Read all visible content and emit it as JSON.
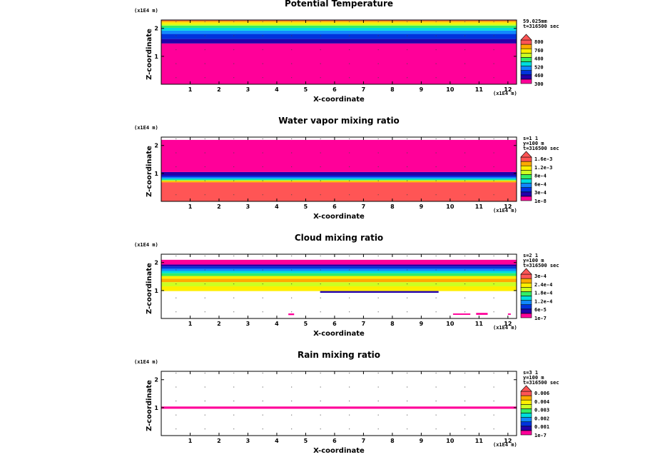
{
  "figure": {
    "xlabel": "X-coordinate",
    "zlabel": "Z-coordinate",
    "x_unit": "(x1E4 m)",
    "z_unit": "(x1E4 m)"
  },
  "chart_data": [
    {
      "type": "heatmap",
      "title": "Potential Temperature",
      "xlabel": "X-coordinate",
      "ylabel": "Z-coordinate",
      "xlim": [
        0,
        12.3
      ],
      "ylim": [
        0,
        2.3
      ],
      "x_ticks": [
        1,
        2,
        3,
        4,
        5,
        6,
        7,
        8,
        9,
        10,
        11,
        12
      ],
      "y_ticks": [
        1,
        2
      ],
      "info": [
        "59.025mm",
        "t=316500 sec"
      ],
      "legend_levels": [
        "800",
        "760",
        "480",
        "520",
        "460",
        "300"
      ],
      "band_colors": [
        "#ff0099",
        "#2200aa",
        "#0033dd",
        "#1188ff",
        "#00dddd",
        "#33ee66",
        "#ccff22",
        "#ffee00",
        "#ffaa00",
        "#ff5555"
      ],
      "bands": [
        {
          "z0": 0.0,
          "z1": 1.46,
          "color": "#ff0099"
        },
        {
          "z0": 1.46,
          "z1": 1.62,
          "color": "#2200aa"
        },
        {
          "z0": 1.62,
          "z1": 1.8,
          "color": "#0033dd"
        },
        {
          "z0": 1.8,
          "z1": 1.92,
          "color": "#1188ff"
        },
        {
          "z0": 1.92,
          "z1": 2.02,
          "color": "#00dddd"
        },
        {
          "z0": 2.02,
          "z1": 2.1,
          "color": "#33ee66"
        },
        {
          "z0": 2.1,
          "z1": 2.16,
          "color": "#ccff22"
        },
        {
          "z0": 2.16,
          "z1": 2.22,
          "color": "#ffee00"
        },
        {
          "z0": 2.22,
          "z1": 2.27,
          "color": "#ffaa00"
        },
        {
          "z0": 2.27,
          "z1": 2.3,
          "color": "#ff5555"
        }
      ],
      "patches": []
    },
    {
      "type": "heatmap",
      "title": "Water vapor mixing ratio",
      "xlabel": "X-coordinate",
      "ylabel": "Z-coordinate",
      "xlim": [
        0,
        12.3
      ],
      "ylim": [
        0,
        2.3
      ],
      "x_ticks": [
        1,
        2,
        3,
        4,
        5,
        6,
        7,
        8,
        9,
        10,
        11,
        12
      ],
      "y_ticks": [
        1,
        2
      ],
      "info": [
        "s=1 1",
        "y=100 m",
        "t=316500 sec"
      ],
      "legend_levels": [
        "1.6e-3",
        "1.2e-3",
        "8e-4",
        "6e-4",
        "3e-4",
        "1e-8"
      ],
      "band_colors": [
        "#ff0099",
        "#2200aa",
        "#0033dd",
        "#1188ff",
        "#00dddd",
        "#33ee66",
        "#ccff22",
        "#ffee00",
        "#ffaa00",
        "#ff5555"
      ],
      "bands": [
        {
          "z0": 0.0,
          "z1": 0.68,
          "color": "#ff5555"
        },
        {
          "z0": 0.68,
          "z1": 0.72,
          "color": "#ffaa00"
        },
        {
          "z0": 0.72,
          "z1": 0.75,
          "color": "#ffee00"
        },
        {
          "z0": 0.75,
          "z1": 0.78,
          "color": "#33ee66"
        },
        {
          "z0": 0.78,
          "z1": 0.82,
          "color": "#00dddd"
        },
        {
          "z0": 0.82,
          "z1": 0.86,
          "color": "#1188ff"
        },
        {
          "z0": 0.86,
          "z1": 0.92,
          "color": "#0033dd"
        },
        {
          "z0": 0.92,
          "z1": 1.05,
          "color": "#2200aa"
        },
        {
          "z0": 1.05,
          "z1": 2.2,
          "color": "#ff0099"
        }
      ],
      "patches": []
    },
    {
      "type": "heatmap",
      "title": "Cloud mixing ratio",
      "xlabel": "X-coordinate",
      "ylabel": "Z-coordinate",
      "xlim": [
        0,
        12.3
      ],
      "ylim": [
        0,
        2.3
      ],
      "x_ticks": [
        1,
        2,
        3,
        4,
        5,
        6,
        7,
        8,
        9,
        10,
        11,
        12
      ],
      "y_ticks": [
        1,
        2
      ],
      "info": [
        "s=2 1",
        "y=100 m",
        "t=316500 sec"
      ],
      "legend_levels": [
        "3e-4",
        "2.4e-4",
        "1.8e-4",
        "1.2e-4",
        "6e-5",
        "1e-7"
      ],
      "band_colors": [
        "#ff0099",
        "#2200aa",
        "#0033dd",
        "#1188ff",
        "#00dddd",
        "#33ee66",
        "#ccff22",
        "#ffee00",
        "#ffaa00",
        "#ff5555"
      ],
      "bands": [
        {
          "z0": 0.98,
          "z1": 1.15,
          "color": "#ffee00"
        },
        {
          "z0": 1.15,
          "z1": 1.3,
          "color": "#ccff22"
        },
        {
          "z0": 1.3,
          "z1": 1.42,
          "color": "#ffaa00"
        },
        {
          "z0": 1.42,
          "z1": 1.52,
          "color": "#ffee00"
        },
        {
          "z0": 1.52,
          "z1": 1.62,
          "color": "#33ee66"
        },
        {
          "z0": 1.62,
          "z1": 1.7,
          "color": "#00dddd"
        },
        {
          "z0": 1.7,
          "z1": 1.78,
          "color": "#1188ff"
        },
        {
          "z0": 1.78,
          "z1": 1.86,
          "color": "#0033dd"
        },
        {
          "z0": 1.86,
          "z1": 1.93,
          "color": "#2200aa"
        },
        {
          "z0": 1.93,
          "z1": 2.1,
          "color": "#ff0099"
        }
      ],
      "patches": [
        {
          "x0": 4.4,
          "x1": 4.6,
          "z0": 0.12,
          "z1": 0.18,
          "color": "#ff0099"
        },
        {
          "x0": 10.1,
          "x1": 10.7,
          "z0": 0.13,
          "z1": 0.18,
          "color": "#ff0099"
        },
        {
          "x0": 10.9,
          "x1": 11.3,
          "z0": 0.13,
          "z1": 0.2,
          "color": "#ff0099"
        },
        {
          "x0": 12.0,
          "x1": 12.1,
          "z0": 0.13,
          "z1": 0.18,
          "color": "#ff0099"
        },
        {
          "x0": 5.5,
          "x1": 9.6,
          "z0": 0.92,
          "z1": 0.98,
          "color": "#2200aa"
        }
      ]
    },
    {
      "type": "heatmap",
      "title": "Rain mixing ratio",
      "xlabel": "X-coordinate",
      "ylabel": "Z-coordinate",
      "xlim": [
        0,
        12.3
      ],
      "ylim": [
        0,
        2.3
      ],
      "x_ticks": [
        1,
        2,
        3,
        4,
        5,
        6,
        7,
        8,
        9,
        10,
        11,
        12
      ],
      "y_ticks": [
        1,
        2
      ],
      "info": [
        "s=3 1",
        "y=100 m",
        "t=316500 sec"
      ],
      "legend_levels": [
        "0.006",
        "0.004",
        "0.003",
        "0.002",
        "0.001",
        "1e-7"
      ],
      "band_colors": [
        "#ff0099",
        "#2200aa",
        "#0033dd",
        "#1188ff",
        "#00dddd",
        "#33ee66",
        "#ccff22",
        "#ffee00",
        "#ffaa00",
        "#ff5555"
      ],
      "bands": [
        {
          "z0": 0.96,
          "z1": 1.04,
          "color": "#ff0099"
        }
      ],
      "patches": []
    }
  ]
}
